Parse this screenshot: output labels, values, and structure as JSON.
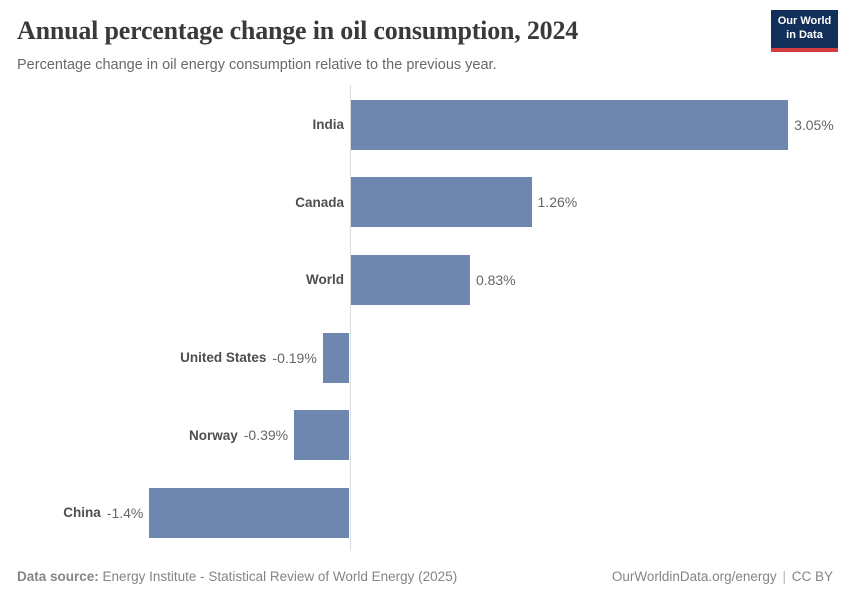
{
  "header": {
    "title": "Annual percentage change in oil consumption, 2024",
    "subtitle": "Percentage change in oil energy consumption relative to the previous year.",
    "logo": {
      "line1": "Our World",
      "line2": "in Data"
    }
  },
  "chart_data": {
    "type": "bar",
    "orientation": "horizontal",
    "title": "Annual percentage change in oil consumption, 2024",
    "categories": [
      "India",
      "Canada",
      "World",
      "United States",
      "Norway",
      "China"
    ],
    "values": [
      3.05,
      1.26,
      0.83,
      -0.19,
      -0.39,
      -1.4
    ],
    "value_labels": [
      "3.05%",
      "1.26%",
      "0.83%",
      "-0.19%",
      "-0.39%",
      "-1.4%"
    ],
    "xlabel": "",
    "ylabel": "",
    "xlim": [
      -1.5,
      3.3
    ],
    "grid": false,
    "legend": "none",
    "bar_color": "#6d87ae",
    "axis_color": "#dcdcdc"
  },
  "footer": {
    "source_label": "Data source:",
    "source_text": "Energy Institute - Statistical Review of World Energy (2025)",
    "link_text": "OurWorldinData.org/energy",
    "separator": "|",
    "license": "CC BY"
  }
}
